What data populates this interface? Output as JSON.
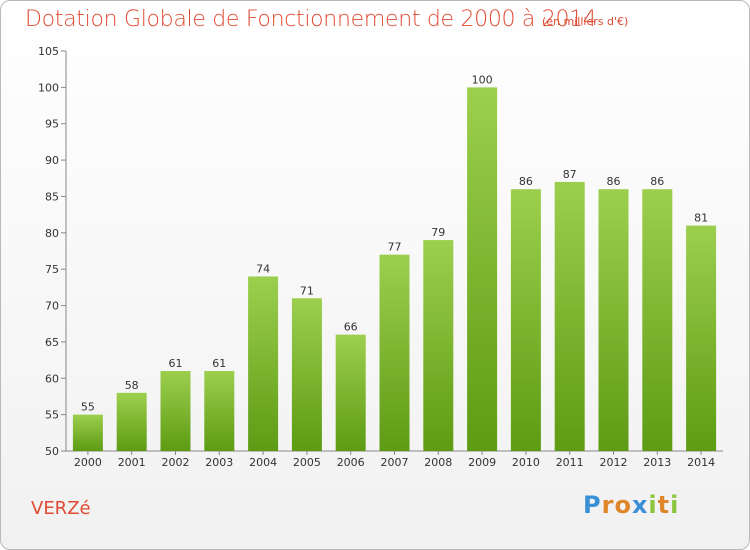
{
  "commune": "VERZé",
  "logo": {
    "letters": [
      "P",
      "r",
      "o",
      "x",
      "i",
      "t",
      "i"
    ],
    "colors": [
      "#3b8fd4",
      "#e0862a",
      "#e0862a",
      "#3b8fd4",
      "#8cc63f",
      "#e0862a",
      "#8cc63f"
    ]
  },
  "chart_data": {
    "type": "bar",
    "title": "Dotation Globale de Fonctionnement de 2000 à 2014",
    "subtitle": "(en milliers d'€)",
    "categories": [
      "2000",
      "2001",
      "2002",
      "2003",
      "2004",
      "2005",
      "2006",
      "2007",
      "2008",
      "2009",
      "2010",
      "2011",
      "2012",
      "2013",
      "2014"
    ],
    "values": [
      55,
      58,
      61,
      61,
      74,
      71,
      66,
      77,
      79,
      100,
      86,
      87,
      86,
      86,
      81
    ],
    "ylim": [
      50,
      105
    ],
    "yticks": [
      50,
      55,
      60,
      65,
      70,
      75,
      80,
      85,
      90,
      95,
      100,
      105
    ],
    "grid": false,
    "bar_color_top": "#9ccf4e",
    "bar_color_bottom": "#5e9b14"
  }
}
